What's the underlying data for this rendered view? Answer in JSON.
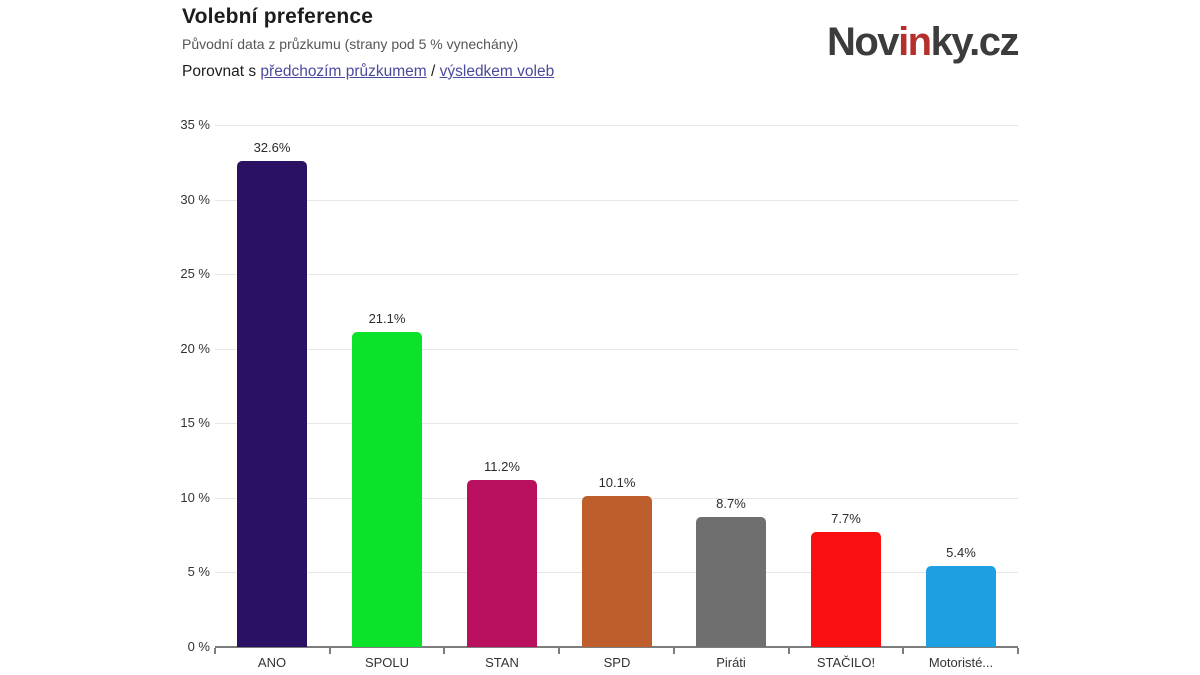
{
  "header": {
    "title": "Volební preference",
    "subtitle": "Původní data z průzkumu (strany pod 5 % vynechány)",
    "compare_prefix": "Porovnat s",
    "compare_link_survey": "předchozím průzkumem",
    "compare_separator": "/",
    "compare_link_result": "výsledkem voleb",
    "link_color": "#4a4a9c"
  },
  "logo": {
    "part1": "Nov",
    "part2": "in",
    "part3": "ky.cz",
    "dark_color": "#3c3c3c",
    "red_color": "#b5302b"
  },
  "chart_data": {
    "type": "bar",
    "title": "Volební preference",
    "categories": [
      "ANO",
      "SPOLU",
      "STAN",
      "SPD",
      "Piráti",
      "STAČILO!",
      "Motoristé..."
    ],
    "values": [
      32.6,
      21.1,
      11.2,
      10.1,
      8.7,
      7.7,
      5.4
    ],
    "value_labels": [
      "32.6%",
      "21.1%",
      "11.2%",
      "10.1%",
      "8.7%",
      "7.7%",
      "5.4%"
    ],
    "bar_colors": [
      "#2b1164",
      "#0be32b",
      "#b8105f",
      "#bd5e2c",
      "#6f6f6f",
      "#f90f0f",
      "#1d9fe1"
    ],
    "ylim": [
      0,
      35
    ],
    "ytick_step": 5,
    "ytick_labels": [
      "0 %",
      "5 %",
      "10 %",
      "15 %",
      "20 %",
      "25 %",
      "30 %",
      "35 %"
    ],
    "grid": true,
    "legend": "none",
    "xlabel": "",
    "ylabel": ""
  }
}
